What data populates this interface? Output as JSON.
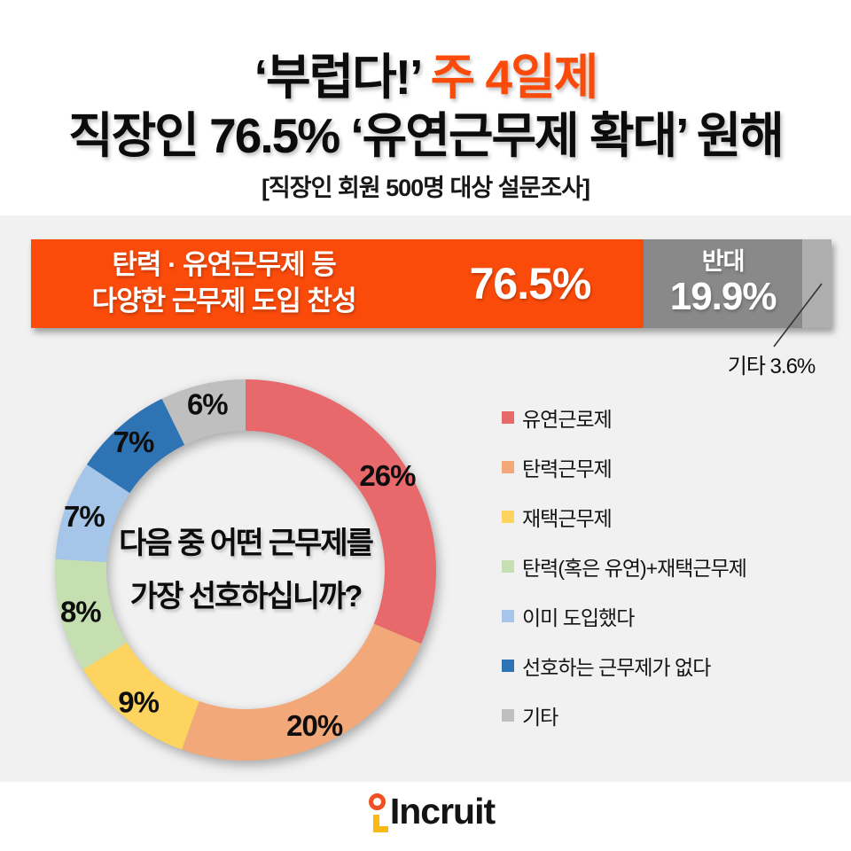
{
  "header": {
    "title_line1_plain": "‘부럽다!’",
    "title_line1_highlight": "주 4일제",
    "title_line2": "직장인 76.5% ‘유연근무제 확대’ 원해",
    "caption": "[직장인 회원 500명 대상 설문조사]",
    "highlight_color": "#fb4b0b"
  },
  "approval_bar": {
    "agree_label_line1": "탄력 · 유연근무제 등",
    "agree_label_line2": "다양한 근무제 도입 찬성",
    "agree_display": "76.5%",
    "oppose_label": "반대",
    "oppose_display": "19.9%",
    "other_callout": "기타 3.6%"
  },
  "donut_center": {
    "question_line1": "다음 중 어떤 근무제를",
    "question_line2": "가장 선호하십니까?"
  },
  "legend": {
    "items": [
      {
        "label": "유연근로제",
        "color": "#e7696c"
      },
      {
        "label": "탄력근무제",
        "color": "#f2a878"
      },
      {
        "label": "재택근무제",
        "color": "#fcd45f"
      },
      {
        "label": "탄력(혹은 유연)+재택근무제",
        "color": "#c6dfb0"
      },
      {
        "label": "이미 도입했다",
        "color": "#a6c6e9"
      },
      {
        "label": "선호하는 근무제가 없다",
        "color": "#2e74b5"
      },
      {
        "label": "기타",
        "color": "#bfbfbf"
      }
    ]
  },
  "footer": {
    "brand": "Incruit",
    "mark_ring_color": "#f05023",
    "mark_l_color": "#fcb813"
  },
  "chart_data": [
    {
      "type": "bar",
      "layout": "horizontal-stacked",
      "categories": [
        "탄력 · 유연근무제 등 다양한 근무제 도입 찬성",
        "반대",
        "기타"
      ],
      "values": [
        76.5,
        19.9,
        3.6
      ],
      "labels": [
        "76.5%",
        "19.9%",
        "기타 3.6%"
      ],
      "colors": [
        "#fb4b0b",
        "#898989",
        "#aeaeae"
      ],
      "unit": "%",
      "xlim": [
        0,
        100
      ]
    },
    {
      "type": "pie",
      "donut": true,
      "title": "다음 중 어떤 근무제를 가장 선호하십니까?",
      "categories": [
        "유연근로제",
        "탄력근무제",
        "재택근무제",
        "탄력(혹은 유연)+재택근무제",
        "이미 도입했다",
        "선호하는 근무제가 없다",
        "기타"
      ],
      "values": [
        26,
        20,
        9,
        8,
        7,
        7,
        6
      ],
      "labels": [
        "26%",
        "20%",
        "9%",
        "8%",
        "7%",
        "7%",
        "6%"
      ],
      "colors": [
        "#e7696c",
        "#f2a878",
        "#fcd45f",
        "#c6dfb0",
        "#a6c6e9",
        "#2e74b5",
        "#bfbfbf"
      ],
      "unit": "%",
      "start_angle_deg": 0,
      "direction": "clockwise",
      "legend_position": "right"
    }
  ]
}
